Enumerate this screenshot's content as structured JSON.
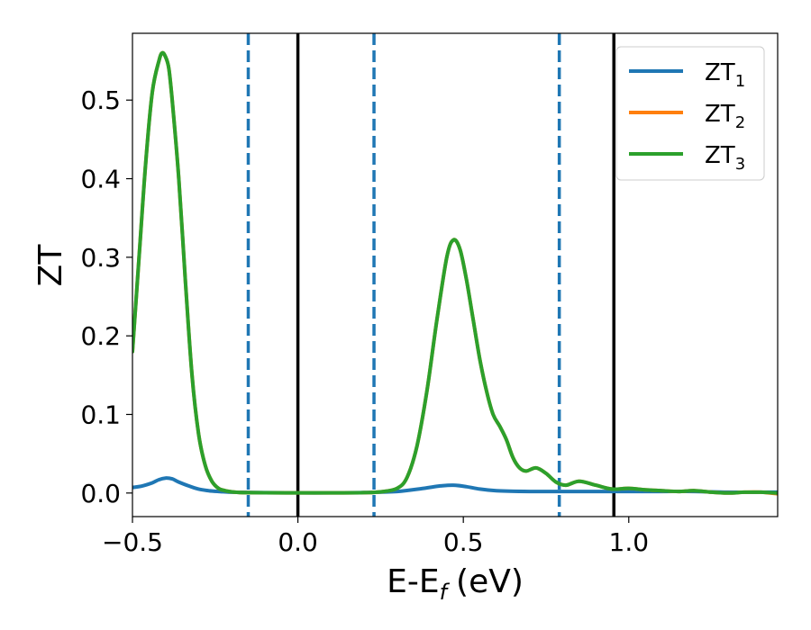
{
  "chart_data": {
    "type": "line",
    "xlabel": "E-E",
    "xlabel_sub": "f",
    "xlabel_unit": "(eV)",
    "ylabel": "ZT",
    "xlim": [
      -0.5,
      1.45
    ],
    "ylim": [
      -0.03,
      0.585
    ],
    "x_ticks": [
      {
        "value": -0.5,
        "label": "−0.5"
      },
      {
        "value": 0.0,
        "label": "0.0"
      },
      {
        "value": 0.5,
        "label": "0.5"
      },
      {
        "value": 1.0,
        "label": "1.0"
      }
    ],
    "y_ticks": [
      {
        "value": 0.0,
        "label": "0.0"
      },
      {
        "value": 0.1,
        "label": "0.1"
      },
      {
        "value": 0.2,
        "label": "0.2"
      },
      {
        "value": 0.3,
        "label": "0.3"
      },
      {
        "value": 0.4,
        "label": "0.4"
      },
      {
        "value": 0.5,
        "label": "0.5"
      }
    ],
    "grid": false,
    "legend_position": "top-right",
    "vertical_lines": [
      {
        "x": -0.15,
        "style": "dashed",
        "color": "#1f77b4"
      },
      {
        "x": 0.0,
        "style": "solid",
        "color": "#000000"
      },
      {
        "x": 0.23,
        "style": "dashed",
        "color": "#1f77b4"
      },
      {
        "x": 0.79,
        "style": "dashed",
        "color": "#1f77b4"
      },
      {
        "x": 0.955,
        "style": "solid",
        "color": "#000000"
      }
    ],
    "series": [
      {
        "name": "ZT",
        "sub": "1",
        "color": "#1f77b4",
        "x": [
          -0.5,
          -0.47,
          -0.44,
          -0.42,
          -0.4,
          -0.38,
          -0.36,
          -0.33,
          -0.3,
          -0.27,
          -0.24,
          -0.2,
          -0.15,
          -0.1,
          0.0,
          0.1,
          0.2,
          0.3,
          0.38,
          0.43,
          0.47,
          0.51,
          0.55,
          0.6,
          0.7,
          0.8,
          0.9,
          1.0,
          1.1,
          1.2,
          1.3,
          1.45
        ],
        "y": [
          0.007,
          0.009,
          0.013,
          0.017,
          0.019,
          0.018,
          0.014,
          0.009,
          0.005,
          0.003,
          0.002,
          0.001,
          0.0008,
          0.0005,
          0.0003,
          0.0003,
          0.0006,
          0.002,
          0.006,
          0.009,
          0.01,
          0.008,
          0.005,
          0.003,
          0.002,
          0.002,
          0.002,
          0.002,
          0.002,
          0.002,
          0.001,
          0.001
        ]
      },
      {
        "name": "ZT",
        "sub": "2",
        "color": "#ff7f0e",
        "x": [
          -0.5,
          -0.48,
          -0.46,
          -0.44,
          -0.42,
          -0.41,
          -0.4,
          -0.39,
          -0.38,
          -0.36,
          -0.34,
          -0.32,
          -0.3,
          -0.28,
          -0.26,
          -0.24,
          -0.22,
          -0.2,
          -0.18,
          -0.15,
          -0.1,
          0.0,
          0.1,
          0.2,
          0.25,
          0.3,
          0.33,
          0.36,
          0.39,
          0.42,
          0.45,
          0.47,
          0.49,
          0.51,
          0.53,
          0.55,
          0.57,
          0.59,
          0.61,
          0.63,
          0.65,
          0.67,
          0.69,
          0.72,
          0.75,
          0.78,
          0.81,
          0.85,
          0.9,
          0.95,
          1.0,
          1.05,
          1.1,
          1.15,
          1.2,
          1.25,
          1.3,
          1.35,
          1.4,
          1.45
        ],
        "y": [
          0.18,
          0.3,
          0.42,
          0.51,
          0.55,
          0.56,
          0.555,
          0.54,
          0.5,
          0.4,
          0.27,
          0.15,
          0.075,
          0.035,
          0.015,
          0.006,
          0.003,
          0.0015,
          0.0008,
          0.0005,
          0.0003,
          0.0002,
          0.0002,
          0.0005,
          0.0015,
          0.006,
          0.02,
          0.06,
          0.13,
          0.22,
          0.3,
          0.322,
          0.31,
          0.27,
          0.22,
          0.17,
          0.13,
          0.1,
          0.085,
          0.068,
          0.045,
          0.032,
          0.028,
          0.032,
          0.025,
          0.014,
          0.01,
          0.015,
          0.01,
          0.005,
          0.006,
          0.004,
          0.003,
          0.002,
          0.003,
          0.001,
          0.0,
          0.001,
          0.001,
          -0.001
        ]
      },
      {
        "name": "ZT",
        "sub": "3",
        "color": "#2ca02c",
        "x": [
          -0.5,
          -0.48,
          -0.46,
          -0.44,
          -0.42,
          -0.41,
          -0.4,
          -0.39,
          -0.38,
          -0.36,
          -0.34,
          -0.32,
          -0.3,
          -0.28,
          -0.26,
          -0.24,
          -0.22,
          -0.2,
          -0.18,
          -0.15,
          -0.1,
          0.0,
          0.1,
          0.2,
          0.25,
          0.3,
          0.33,
          0.36,
          0.39,
          0.42,
          0.45,
          0.47,
          0.49,
          0.51,
          0.53,
          0.55,
          0.57,
          0.59,
          0.61,
          0.63,
          0.65,
          0.67,
          0.69,
          0.72,
          0.75,
          0.78,
          0.81,
          0.85,
          0.9,
          0.95,
          1.0,
          1.05,
          1.1,
          1.15,
          1.2,
          1.25,
          1.3,
          1.35,
          1.4,
          1.45
        ],
        "y": [
          0.18,
          0.3,
          0.42,
          0.51,
          0.55,
          0.56,
          0.555,
          0.54,
          0.5,
          0.4,
          0.27,
          0.15,
          0.075,
          0.035,
          0.015,
          0.006,
          0.003,
          0.0015,
          0.0008,
          0.0005,
          0.0003,
          0.0002,
          0.0002,
          0.0005,
          0.0015,
          0.006,
          0.02,
          0.06,
          0.13,
          0.22,
          0.3,
          0.322,
          0.31,
          0.27,
          0.22,
          0.17,
          0.13,
          0.1,
          0.085,
          0.068,
          0.045,
          0.032,
          0.028,
          0.032,
          0.025,
          0.014,
          0.01,
          0.015,
          0.01,
          0.005,
          0.006,
          0.004,
          0.003,
          0.002,
          0.003,
          0.001,
          0.0,
          0.001,
          0.001,
          0.0
        ]
      }
    ]
  }
}
